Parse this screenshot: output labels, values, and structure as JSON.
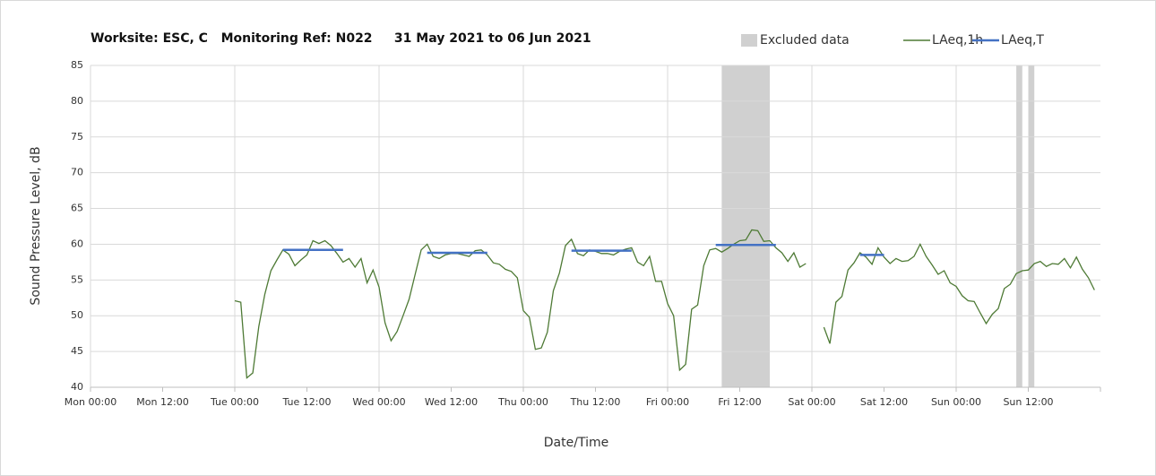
{
  "chart_data": {
    "type": "line",
    "title": "Worksite: ESC, C   Monitoring Ref: N022     31 May 2021 to 06 Jun 2021",
    "xlabel": "Date/Time",
    "ylabel": "Sound Pressure Level, dB",
    "xlim": [
      0,
      168
    ],
    "xticks": [
      {
        "value": 0,
        "label": "Mon 00:00"
      },
      {
        "value": 12,
        "label": "Mon 12:00"
      },
      {
        "value": 24,
        "label": "Tue 00:00"
      },
      {
        "value": 36,
        "label": "Tue 12:00"
      },
      {
        "value": 48,
        "label": "Wed 00:00"
      },
      {
        "value": 60,
        "label": "Wed 12:00"
      },
      {
        "value": 72,
        "label": "Thu 00:00"
      },
      {
        "value": 84,
        "label": "Thu 12:00"
      },
      {
        "value": 96,
        "label": "Fri 00:00"
      },
      {
        "value": 108,
        "label": "Fri 12:00"
      },
      {
        "value": 120,
        "label": "Sat 00:00"
      },
      {
        "value": 132,
        "label": "Sat 12:00"
      },
      {
        "value": 144,
        "label": "Sun 00:00"
      },
      {
        "value": 156,
        "label": "Sun 12:00"
      }
    ],
    "ylim": [
      40,
      85
    ],
    "yticks": [
      40,
      45,
      50,
      55,
      60,
      65,
      70,
      75,
      80,
      85
    ],
    "grid": true,
    "excluded": {
      "name": "Excluded data",
      "color": "#d0d0d0",
      "ranges": [
        [
          105,
          113
        ],
        [
          154,
          155
        ],
        [
          156,
          157
        ]
      ]
    },
    "series": [
      {
        "name": "LAeq,1h",
        "color": "#4e7a35",
        "x": [
          24,
          25,
          26,
          27,
          28,
          29,
          30,
          31,
          32,
          33,
          34,
          35,
          36,
          37,
          38,
          39,
          40,
          41,
          42,
          43,
          44,
          45,
          46,
          47,
          48,
          49,
          50,
          51,
          52,
          53,
          54,
          55,
          56,
          57,
          58,
          59,
          60,
          61,
          62,
          63,
          64,
          65,
          66,
          67,
          68,
          69,
          70,
          71,
          72,
          73,
          74,
          75,
          76,
          77,
          78,
          79,
          80,
          81,
          82,
          83,
          84,
          85,
          86,
          87,
          88,
          89,
          90,
          91,
          92,
          93,
          94,
          95,
          96,
          97,
          98,
          99,
          100,
          101,
          102,
          103,
          104,
          105,
          106,
          107,
          108,
          109,
          110,
          111,
          112,
          113,
          114,
          115,
          116,
          117,
          118,
          119,
          120,
          121,
          122,
          123,
          124,
          125,
          126,
          127,
          128,
          129,
          130,
          131,
          132,
          133,
          134,
          135,
          136,
          137,
          138,
          139,
          140,
          141,
          142,
          143,
          144,
          145,
          146,
          147,
          148,
          149,
          150,
          151,
          152,
          153,
          154,
          155,
          156,
          157,
          158,
          159,
          160,
          161,
          162,
          163,
          164,
          165,
          166,
          167
        ],
        "values": [
          52.1,
          51.9,
          41.3,
          42,
          48.5,
          53,
          56.3,
          57.8,
          59.2,
          58.6,
          57,
          57.8,
          58.5,
          60.5,
          60.1,
          60.5,
          59.8,
          58.7,
          57.5,
          58,
          56.8,
          58,
          54.6,
          56.4,
          54,
          49,
          46.5,
          47.8,
          50,
          52.3,
          55.8,
          59.2,
          60,
          58.3,
          58,
          58.5,
          58.7,
          58.7,
          58.5,
          58.3,
          59.1,
          59.2,
          58.5,
          57.4,
          57.2,
          56.5,
          56.2,
          55.3,
          50.7,
          49.8,
          45.3,
          45.5,
          47.7,
          53.5,
          56,
          59.8,
          60.7,
          58.7,
          58.4,
          59.2,
          59,
          58.7,
          58.7,
          58.5,
          59,
          59.3,
          59.5,
          57.5,
          57,
          58.3,
          54.8,
          54.8,
          51.7,
          50,
          42.4,
          43.2,
          50.9,
          51.5,
          57,
          59.2,
          59.4,
          58.9,
          59.4,
          60,
          60.5,
          60.6,
          62,
          61.9,
          60.4,
          60.5,
          59.5,
          58.8,
          57.6,
          58.8,
          56.8,
          57.3,
          null,
          null,
          48.4,
          46.1,
          51.9,
          52.7,
          56.4,
          57.4,
          58.8,
          58.2,
          57.2,
          59.5,
          58.2,
          57.3,
          58,
          57.6,
          57.7,
          58.3,
          60,
          58.3,
          57.1,
          55.8,
          56.3,
          54.6,
          54.1,
          52.8,
          52.1,
          52,
          50.4,
          48.9,
          50.2,
          51,
          53.8,
          54.4,
          55.9,
          56.3,
          56.4,
          57.3,
          57.6,
          56.9,
          57.3,
          57.2,
          58,
          56.7,
          58.2,
          56.5,
          55.3,
          53.6
        ]
      },
      {
        "name": "LAeq,T",
        "color": "#4472c4",
        "x": [
          32,
          42,
          49,
          56,
          66,
          73,
          80,
          90,
          97,
          104,
          114,
          121,
          128,
          132
        ],
        "values": [
          59.2,
          59.2,
          null,
          58.8,
          58.8,
          null,
          59.1,
          59.1,
          null,
          59.9,
          59.9,
          null,
          58.5,
          58.5
        ]
      }
    ]
  }
}
